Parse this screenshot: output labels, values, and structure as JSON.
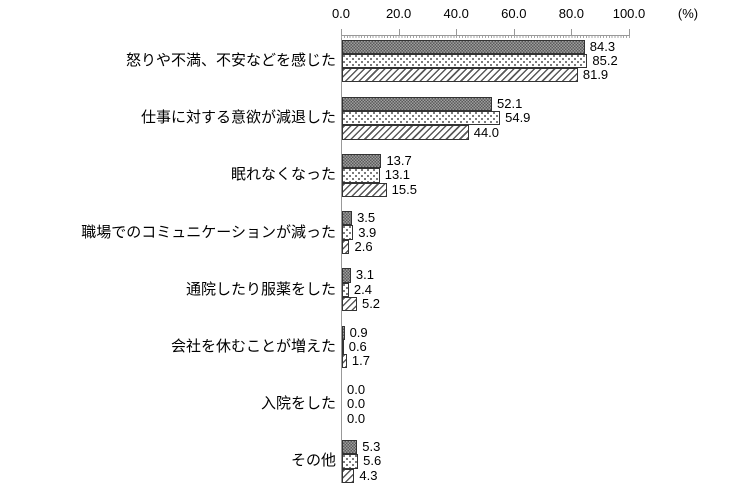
{
  "chart_data": {
    "type": "bar",
    "orientation": "horizontal",
    "title": "",
    "unit": "(%)",
    "xlim": [
      0,
      100
    ],
    "x_ticks": [
      0,
      20,
      40,
      60,
      80,
      100
    ],
    "x_tick_labels": [
      "0.0",
      "20.0",
      "40.0",
      "60.0",
      "80.0",
      "100.0"
    ],
    "grid": false,
    "legend_position": "none",
    "categories": [
      "怒りや不満、不安などを感じた",
      "仕事に対する意欲が減退した",
      "眠れなくなった",
      "職場でのコミュニケーションが減った",
      "通院したり服薬をした",
      "会社を休むことが増えた",
      "入院をした",
      "その他"
    ],
    "series": [
      {
        "name": "series-1",
        "pattern": "dark-checker",
        "values": [
          84.3,
          52.1,
          13.7,
          3.5,
          3.1,
          0.9,
          0.0,
          5.3
        ]
      },
      {
        "name": "series-2",
        "pattern": "white-dotted",
        "values": [
          85.2,
          54.9,
          13.1,
          3.9,
          2.4,
          0.6,
          0.0,
          5.6
        ]
      },
      {
        "name": "series-3",
        "pattern": "diagonal-stripes",
        "values": [
          81.9,
          44.0,
          15.5,
          2.6,
          5.2,
          1.7,
          0.0,
          4.3
        ]
      }
    ],
    "colors": {
      "axis": "#999999",
      "bar_border": "#333333",
      "checker_dark": "#5a5a5a",
      "checker_light": "#9e9e9e",
      "dot": "#707070",
      "stripe": "#5a5a5a",
      "text": "#000000"
    }
  }
}
